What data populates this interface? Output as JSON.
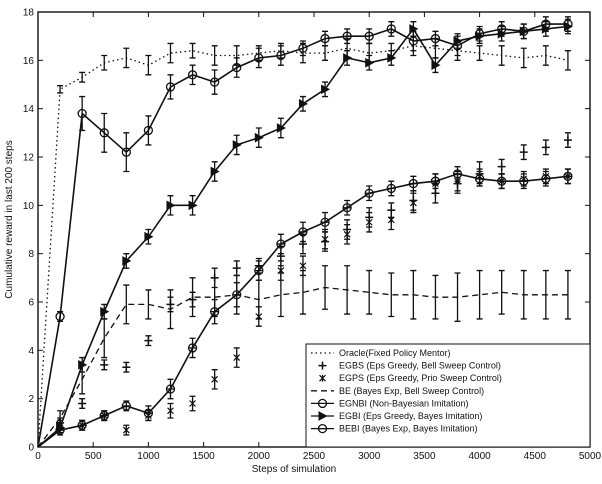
{
  "chart_data": {
    "type": "line",
    "title": "",
    "xlabel": "Steps of simulation",
    "ylabel": "Cumulative reward in last 200 steps",
    "xlim": [
      0,
      5000
    ],
    "ylim": [
      0,
      18
    ],
    "xticks": [
      0,
      500,
      1000,
      1500,
      2000,
      2500,
      3000,
      3500,
      4000,
      4500,
      5000
    ],
    "yticks": [
      0,
      2,
      4,
      6,
      8,
      10,
      12,
      14,
      16,
      18
    ],
    "grid": false,
    "legend_position": "bottom-right",
    "colors": {
      "ink": "#111111",
      "background": "#ffffff"
    },
    "series": [
      {
        "name": "Oracle(Fixed Policy Mentor)",
        "style": "dotted",
        "marker": "none",
        "x": [
          0,
          200,
          400,
          600,
          800,
          1000,
          1200,
          1400,
          1600,
          1800,
          2000,
          2200,
          2400,
          2600,
          2800,
          3000,
          3200,
          3400,
          3600,
          3800,
          4000,
          4200,
          4400,
          4600,
          4800
        ],
        "y": [
          0,
          14.8,
          15.3,
          15.9,
          16.1,
          15.8,
          16.3,
          16.4,
          16.2,
          16.2,
          16.3,
          16.4,
          16.3,
          16.3,
          16.5,
          16.3,
          16.4,
          16.6,
          16.5,
          16.4,
          16.3,
          16.2,
          16.1,
          16.2,
          16.0
        ],
        "err": [
          0,
          0.15,
          0.2,
          0.3,
          0.4,
          0.4,
          0.4,
          0.3,
          0.4,
          0.4,
          0.3,
          0.3,
          0.4,
          0.3,
          0.4,
          0.4,
          0.3,
          0.4,
          0.4,
          0.4,
          0.3,
          0.4,
          0.4,
          0.4,
          0.4
        ]
      },
      {
        "name": "EGBS (Eps Greedy, Bell Sweep Control)",
        "style": "none",
        "marker": "plus",
        "x": [
          200,
          400,
          600,
          800,
          1000,
          1200,
          1400,
          1600,
          1800,
          2000,
          2200,
          2400,
          2600,
          2800,
          3000,
          3200,
          3400,
          3600,
          3800,
          4000,
          4200,
          4400,
          4600,
          4800
        ],
        "y": [
          1.0,
          1.8,
          3.4,
          3.3,
          4.4,
          5.9,
          6.1,
          7.0,
          7.4,
          7.5,
          7.9,
          8.4,
          8.5,
          9.0,
          9.5,
          9.8,
          10.2,
          10.5,
          10.9,
          11.3,
          11.6,
          12.2,
          12.4,
          12.7
        ],
        "err": [
          0.2,
          0.2,
          0.2,
          0.2,
          0.2,
          0.3,
          0.3,
          0.4,
          0.3,
          0.3,
          0.4,
          0.4,
          0.4,
          0.4,
          0.4,
          0.3,
          0.4,
          0.4,
          0.4,
          0.5,
          0.3,
          0.3,
          0.3,
          0.3
        ]
      },
      {
        "name": "EGPS (Eps Greedy, Prio Sweep Control)",
        "style": "none",
        "marker": "star",
        "x": [
          200,
          400,
          600,
          800,
          1000,
          1200,
          1400,
          1600,
          1800,
          2000,
          2200,
          2400,
          2600,
          2800,
          3000,
          3200,
          3400,
          3600,
          3800,
          4000,
          4200,
          4400,
          4600,
          4800
        ],
        "y": [
          0.9,
          0.9,
          1.3,
          0.7,
          1.3,
          1.5,
          1.8,
          2.8,
          3.7,
          5.4,
          7.3,
          7.5,
          8.6,
          8.8,
          9.3,
          9.4,
          10.1,
          10.9,
          11.0,
          11.2,
          11.0,
          11.1,
          11.2,
          11.2
        ],
        "err": [
          0.2,
          0.2,
          0.2,
          0.2,
          0.2,
          0.3,
          0.3,
          0.4,
          0.4,
          0.4,
          0.4,
          0.4,
          0.4,
          0.4,
          0.4,
          0.4,
          0.4,
          0.4,
          0.4,
          0.3,
          0.3,
          0.3,
          0.3,
          0.3
        ]
      },
      {
        "name": "BE (Bayes Exp, Bell Sweep Control)",
        "style": "dashed",
        "marker": "none",
        "x": [
          0,
          200,
          400,
          600,
          800,
          1000,
          1200,
          1400,
          1600,
          1800,
          2000,
          2200,
          2400,
          2600,
          2800,
          3000,
          3200,
          3400,
          3600,
          3800,
          4000,
          4200,
          4400,
          4600,
          4800
        ],
        "y": [
          0,
          1.2,
          2.8,
          4.5,
          5.9,
          5.9,
          5.7,
          6.2,
          6.2,
          6.3,
          6.1,
          6.3,
          6.4,
          6.6,
          6.5,
          6.4,
          6.3,
          6.3,
          6.2,
          6.2,
          6.3,
          6.4,
          6.3,
          6.3,
          6.3
        ],
        "err": [
          0,
          0.3,
          0.6,
          0.8,
          0.8,
          0.6,
          0.8,
          0.8,
          0.8,
          0.8,
          0.8,
          0.9,
          0.9,
          0.9,
          1.0,
          0.9,
          0.9,
          1.0,
          0.9,
          1.0,
          1.0,
          0.9,
          1.0,
          1.0,
          1.0
        ]
      },
      {
        "name": "EGNBI (Non-Bayesian Imitation)",
        "style": "solid",
        "marker": "circle",
        "x": [
          0,
          200,
          400,
          600,
          800,
          1000,
          1200,
          1400,
          1600,
          1800,
          2000,
          2200,
          2400,
          2600,
          2800,
          3000,
          3200,
          3400,
          3600,
          3800,
          4000,
          4200,
          4400,
          4600,
          4800
        ],
        "y": [
          0,
          5.4,
          13.8,
          13.0,
          12.2,
          13.1,
          14.9,
          15.4,
          15.1,
          15.7,
          16.1,
          16.2,
          16.5,
          16.9,
          17.0,
          17.0,
          17.3,
          16.8,
          16.9,
          16.6,
          17.1,
          17.3,
          17.2,
          17.5,
          17.5
        ],
        "err": [
          0,
          0.2,
          0.7,
          0.8,
          0.8,
          0.6,
          0.5,
          0.4,
          0.5,
          0.4,
          0.4,
          0.4,
          0.3,
          0.3,
          0.3,
          0.3,
          0.3,
          0.4,
          0.3,
          0.4,
          0.3,
          0.3,
          0.3,
          0.3,
          0.3
        ]
      },
      {
        "name": "EGBI (Eps Greedy, Bayes Imitation)",
        "style": "solid",
        "marker": "triangle-right",
        "x": [
          0,
          200,
          400,
          600,
          800,
          1000,
          1200,
          1400,
          1600,
          1800,
          2000,
          2200,
          2400,
          2600,
          2800,
          3000,
          3200,
          3400,
          3600,
          3800,
          4000,
          4200,
          4400,
          4600,
          4800
        ],
        "y": [
          0,
          0.8,
          3.4,
          5.6,
          7.7,
          8.7,
          10.0,
          10.0,
          11.4,
          12.5,
          12.8,
          13.2,
          14.2,
          14.8,
          16.1,
          15.9,
          16.1,
          17.3,
          15.8,
          16.8,
          17.0,
          17.1,
          17.2,
          17.3,
          17.4
        ],
        "err": [
          0,
          0.2,
          0.3,
          0.3,
          0.3,
          0.3,
          0.4,
          0.4,
          0.4,
          0.4,
          0.4,
          0.4,
          0.3,
          0.3,
          0.3,
          0.3,
          0.3,
          0.3,
          0.3,
          0.3,
          0.3,
          0.3,
          0.3,
          0.3,
          0.3
        ]
      },
      {
        "name": "BEBI (Bayes Exp, Bayes Imitation)",
        "style": "solid",
        "marker": "circle-cross",
        "x": [
          0,
          200,
          400,
          600,
          800,
          1000,
          1200,
          1400,
          1600,
          1800,
          2000,
          2200,
          2400,
          2600,
          2800,
          3000,
          3200,
          3400,
          3600,
          3800,
          4000,
          4200,
          4400,
          4600,
          4800
        ],
        "y": [
          0,
          0.7,
          0.9,
          1.3,
          1.7,
          1.4,
          2.4,
          4.1,
          5.6,
          6.3,
          7.3,
          8.4,
          8.9,
          9.3,
          9.9,
          10.5,
          10.7,
          10.9,
          11.0,
          11.3,
          11.1,
          11.0,
          11.0,
          11.1,
          11.2
        ],
        "err": [
          0,
          0.2,
          0.2,
          0.2,
          0.2,
          0.3,
          0.4,
          0.4,
          0.5,
          0.5,
          0.4,
          0.4,
          0.4,
          0.4,
          0.3,
          0.3,
          0.3,
          0.3,
          0.3,
          0.3,
          0.3,
          0.3,
          0.3,
          0.3,
          0.3
        ]
      }
    ]
  }
}
